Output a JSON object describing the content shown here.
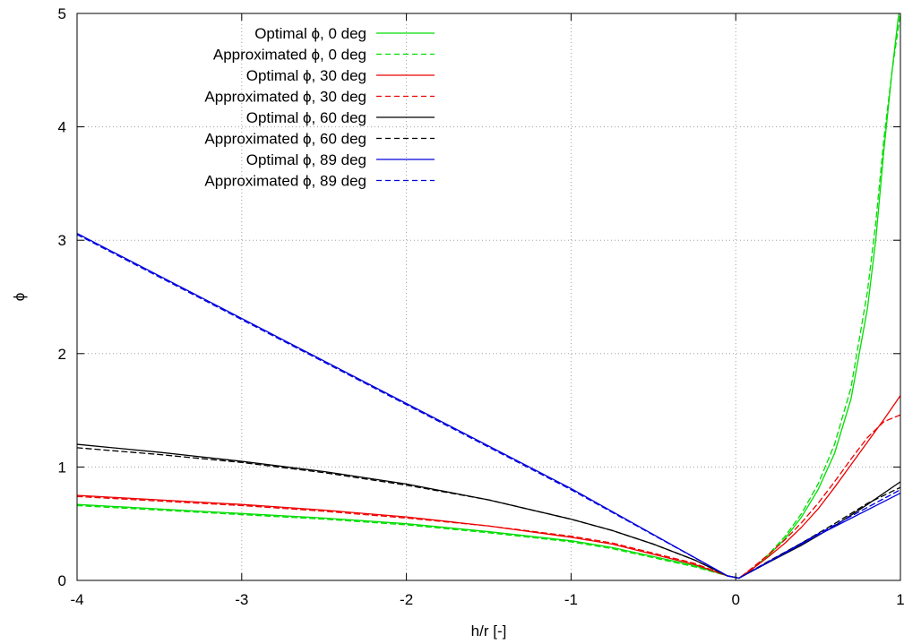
{
  "chart_data": {
    "type": "line",
    "xlabel": "h/r [-]",
    "ylabel": "ϕ",
    "xlim": [
      -4,
      1
    ],
    "ylim": [
      0,
      5
    ],
    "xticks": [
      -4,
      -3,
      -2,
      -1,
      0,
      1
    ],
    "yticks": [
      0,
      1,
      2,
      3,
      4,
      5
    ],
    "x_tick_labels": [
      "-4",
      "-3",
      "-2",
      "-1",
      "0",
      "1"
    ],
    "y_tick_labels": [
      "0",
      "1",
      "2",
      "3",
      "4",
      "5"
    ],
    "grid": true,
    "legend_position": "top-left",
    "series": [
      {
        "name": "Optimal ϕ, 0 deg",
        "color": "#00dd00",
        "dash": "solid",
        "points": [
          [
            -4,
            0.67
          ],
          [
            -3.5,
            0.63
          ],
          [
            -3,
            0.59
          ],
          [
            -2.5,
            0.55
          ],
          [
            -2,
            0.5
          ],
          [
            -1.5,
            0.43
          ],
          [
            -1,
            0.35
          ],
          [
            -0.75,
            0.29
          ],
          [
            -0.5,
            0.21
          ],
          [
            -0.25,
            0.13
          ],
          [
            -0.05,
            0.04
          ],
          [
            0.02,
            0.02
          ],
          [
            0.1,
            0.1
          ],
          [
            0.2,
            0.22
          ],
          [
            0.3,
            0.37
          ],
          [
            0.4,
            0.56
          ],
          [
            0.5,
            0.8
          ],
          [
            0.6,
            1.12
          ],
          [
            0.7,
            1.6
          ],
          [
            0.8,
            2.4
          ],
          [
            0.85,
            3.0
          ],
          [
            0.9,
            3.8
          ],
          [
            0.95,
            4.5
          ],
          [
            0.99,
            5.0
          ]
        ]
      },
      {
        "name": "Approximated ϕ, 0 deg",
        "color": "#00dd00",
        "dash": "dashed",
        "points": [
          [
            -4,
            0.66
          ],
          [
            -3.5,
            0.62
          ],
          [
            -3,
            0.58
          ],
          [
            -2.5,
            0.54
          ],
          [
            -2,
            0.49
          ],
          [
            -1.5,
            0.42
          ],
          [
            -1,
            0.34
          ],
          [
            -0.75,
            0.28
          ],
          [
            -0.5,
            0.2
          ],
          [
            -0.25,
            0.12
          ],
          [
            -0.05,
            0.04
          ],
          [
            0.02,
            0.02
          ],
          [
            0.1,
            0.1
          ],
          [
            0.2,
            0.23
          ],
          [
            0.3,
            0.39
          ],
          [
            0.4,
            0.59
          ],
          [
            0.5,
            0.85
          ],
          [
            0.6,
            1.2
          ],
          [
            0.7,
            1.7
          ],
          [
            0.8,
            2.55
          ],
          [
            0.85,
            3.15
          ],
          [
            0.9,
            3.9
          ],
          [
            0.95,
            4.5
          ],
          [
            1.0,
            5.0
          ]
        ]
      },
      {
        "name": "Optimal ϕ, 30 deg",
        "color": "#ee0000",
        "dash": "solid",
        "points": [
          [
            -4,
            0.75
          ],
          [
            -3.5,
            0.71
          ],
          [
            -3,
            0.67
          ],
          [
            -2.5,
            0.62
          ],
          [
            -2,
            0.56
          ],
          [
            -1.5,
            0.48
          ],
          [
            -1,
            0.38
          ],
          [
            -0.75,
            0.32
          ],
          [
            -0.5,
            0.23
          ],
          [
            -0.25,
            0.14
          ],
          [
            -0.05,
            0.04
          ],
          [
            0.02,
            0.02
          ],
          [
            0.1,
            0.1
          ],
          [
            0.2,
            0.21
          ],
          [
            0.3,
            0.33
          ],
          [
            0.4,
            0.47
          ],
          [
            0.5,
            0.63
          ],
          [
            0.6,
            0.82
          ],
          [
            0.7,
            1.02
          ],
          [
            0.8,
            1.22
          ],
          [
            0.9,
            1.42
          ],
          [
            1.0,
            1.63
          ]
        ]
      },
      {
        "name": "Approximated ϕ, 30 deg",
        "color": "#ee0000",
        "dash": "dashed",
        "points": [
          [
            -4,
            0.74
          ],
          [
            -3.5,
            0.7
          ],
          [
            -3,
            0.66
          ],
          [
            -2.5,
            0.61
          ],
          [
            -2,
            0.55
          ],
          [
            -1.5,
            0.48
          ],
          [
            -1,
            0.39
          ],
          [
            -0.75,
            0.33
          ],
          [
            -0.5,
            0.24
          ],
          [
            -0.25,
            0.15
          ],
          [
            -0.05,
            0.04
          ],
          [
            0.02,
            0.02
          ],
          [
            0.1,
            0.11
          ],
          [
            0.2,
            0.23
          ],
          [
            0.3,
            0.36
          ],
          [
            0.4,
            0.51
          ],
          [
            0.5,
            0.68
          ],
          [
            0.6,
            0.87
          ],
          [
            0.7,
            1.07
          ],
          [
            0.8,
            1.26
          ],
          [
            0.9,
            1.4
          ],
          [
            1.0,
            1.46
          ]
        ]
      },
      {
        "name": "Optimal ϕ, 60 deg",
        "color": "#000000",
        "dash": "solid",
        "points": [
          [
            -4,
            1.2
          ],
          [
            -3.5,
            1.13
          ],
          [
            -3,
            1.05
          ],
          [
            -2.5,
            0.96
          ],
          [
            -2,
            0.85
          ],
          [
            -1.5,
            0.71
          ],
          [
            -1,
            0.54
          ],
          [
            -0.75,
            0.44
          ],
          [
            -0.5,
            0.32
          ],
          [
            -0.25,
            0.18
          ],
          [
            -0.05,
            0.04
          ],
          [
            0.02,
            0.02
          ],
          [
            0.2,
            0.16
          ],
          [
            0.4,
            0.31
          ],
          [
            0.6,
            0.48
          ],
          [
            0.8,
            0.67
          ],
          [
            1.0,
            0.87
          ]
        ]
      },
      {
        "name": "Approximated ϕ, 60 deg",
        "color": "#000000",
        "dash": "dashed",
        "points": [
          [
            -4,
            1.17
          ],
          [
            -3.5,
            1.11
          ],
          [
            -3,
            1.04
          ],
          [
            -2.5,
            0.95
          ],
          [
            -2,
            0.84
          ],
          [
            -1.5,
            0.71
          ],
          [
            -1,
            0.54
          ],
          [
            -0.75,
            0.44
          ],
          [
            -0.5,
            0.32
          ],
          [
            -0.25,
            0.18
          ],
          [
            -0.05,
            0.04
          ],
          [
            0.02,
            0.02
          ],
          [
            0.2,
            0.17
          ],
          [
            0.4,
            0.33
          ],
          [
            0.6,
            0.5
          ],
          [
            0.8,
            0.68
          ],
          [
            1.0,
            0.82
          ]
        ]
      },
      {
        "name": "Optimal ϕ, 89 deg",
        "color": "#0000dd",
        "dash": "solid",
        "points": [
          [
            -4,
            3.06
          ],
          [
            -2,
            1.56
          ],
          [
            -1,
            0.81
          ],
          [
            -0.05,
            0.04
          ],
          [
            0.02,
            0.02
          ],
          [
            0.5,
            0.4
          ],
          [
            1.0,
            0.77
          ]
        ]
      },
      {
        "name": "Approximated ϕ, 89 deg",
        "color": "#0000dd",
        "dash": "dashed",
        "points": [
          [
            -4,
            3.05
          ],
          [
            -2,
            1.55
          ],
          [
            -1,
            0.8
          ],
          [
            -0.05,
            0.04
          ],
          [
            0.02,
            0.02
          ],
          [
            0.5,
            0.41
          ],
          [
            1.0,
            0.8
          ]
        ]
      }
    ]
  }
}
